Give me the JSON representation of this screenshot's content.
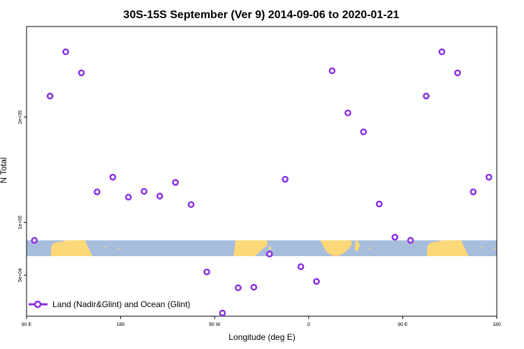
{
  "chart_data": {
    "type": "scatter",
    "title": "30S-15S September (Ver 9)   2014-09-06 to 2020-01-21",
    "xlabel": "Longitude (deg E)",
    "ylabel": "N Total",
    "x_axis": {
      "range": [
        90,
        540
      ],
      "ticks": [
        90,
        180,
        270,
        360,
        450,
        540
      ],
      "tick_labels": [
        "90 E",
        "180",
        "90 W",
        "0",
        "90 E",
        "180"
      ]
    },
    "y_axis": {
      "range": [
        11000,
        286000
      ],
      "ticks": [
        50000,
        100000,
        200000
      ],
      "tick_labels": [
        "5e+04",
        "1e+05",
        "2e+05"
      ]
    },
    "band": {
      "label": "",
      "y_range": [
        68000,
        83000
      ]
    },
    "colors": {
      "points": "#8a2be2",
      "ocean": "#a7bddc",
      "land": "#fdd878"
    },
    "series": [
      {
        "name": "Land (Nadir&Glint) and Ocean (Glint)",
        "x": [
          97.5,
          112.5,
          127.5,
          142.5,
          157.5,
          172.5,
          187.5,
          202.5,
          217.5,
          232.5,
          247.5,
          262.5,
          277.5,
          292.5,
          307.5,
          322.5,
          337.5,
          352.5,
          367.5,
          382.5,
          397.5,
          412.5,
          427.5,
          442.5,
          457.5,
          472.5,
          487.5,
          502.5,
          517.5,
          532.5
        ],
        "y": [
          83000,
          220000,
          262000,
          242000,
          129000,
          143000,
          124000,
          129500,
          125000,
          138000,
          117000,
          53000,
          14000,
          38000,
          38500,
          70000,
          141000,
          58000,
          44000,
          244000,
          204000,
          186000,
          117500,
          86000,
          83000,
          220000,
          262000,
          242000,
          129000,
          143000
        ]
      }
    ]
  }
}
